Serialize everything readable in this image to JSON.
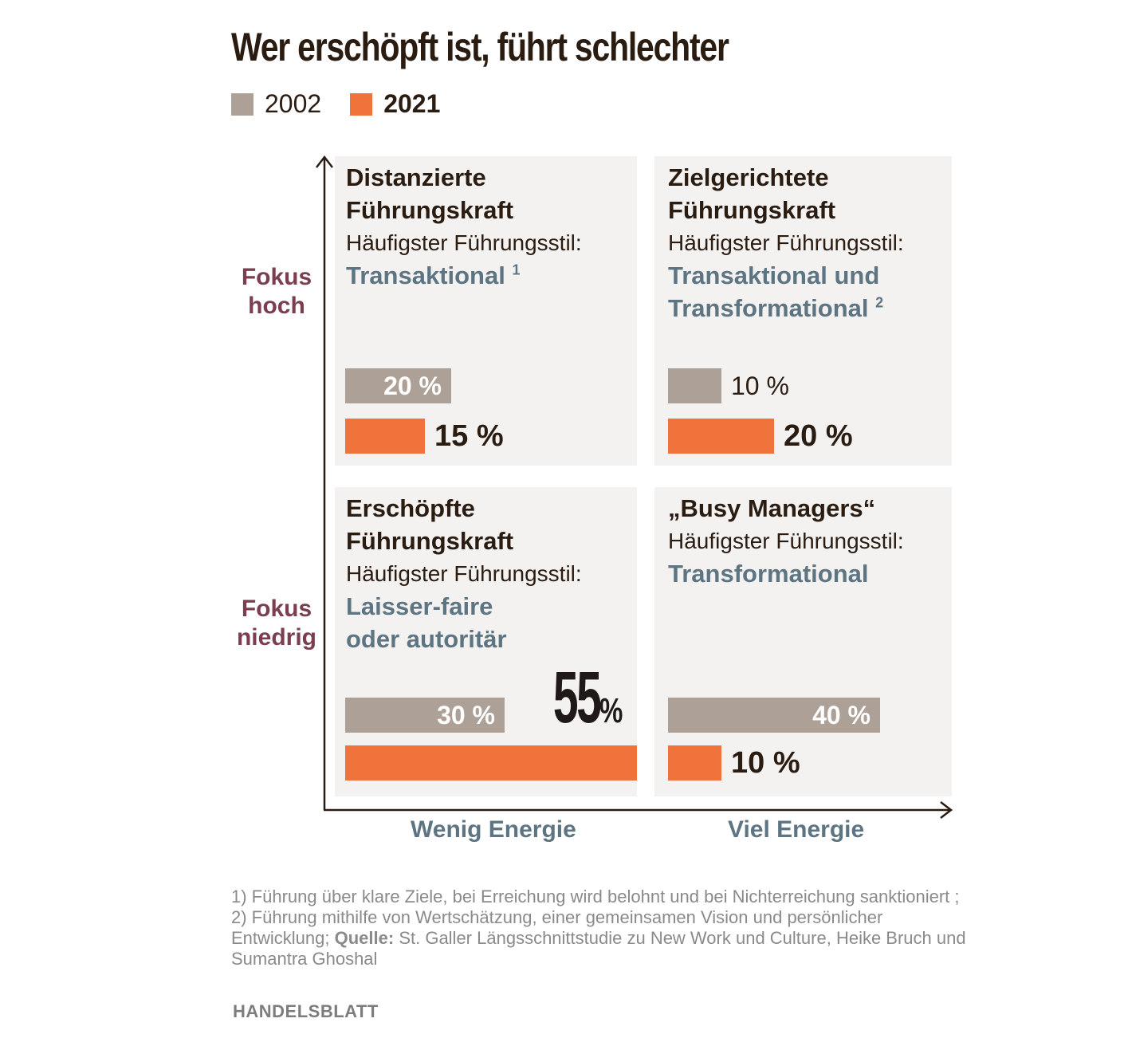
{
  "title": "Wer erschöpft ist, führt schlechter",
  "legend": {
    "label_2002": "2002",
    "label_2021": "2021",
    "color_2002": "#ada197",
    "color_2021": "#f0733c"
  },
  "y_axis": {
    "high": "Fokus hoch",
    "low": "Fokus niedrig"
  },
  "x_axis": {
    "low": "Wenig Energie",
    "high": "Viel Energie"
  },
  "chart_data": {
    "type": "bar",
    "series": [
      {
        "name": "2002",
        "values": [
          20,
          10,
          30,
          40
        ]
      },
      {
        "name": "2021",
        "values": [
          15,
          20,
          55,
          10
        ]
      }
    ],
    "categories": [
      "Distanzierte Führungskraft",
      "Zielgerichtete Führungskraft",
      "Erschöpfte Führungskraft",
      "„Busy Managers“"
    ],
    "value_unit": "%",
    "quadrants": [
      {
        "id": "distanziert",
        "title_line1": "Distanzierte",
        "title_line2": "Führungskraft",
        "subtitle": "Häufigster Führungsstil:",
        "style_line1": "Transaktional",
        "style_line2": "",
        "footnote": "1",
        "v2002": 20,
        "label2002": "20 %",
        "v2021": 15,
        "label2021": "15 %"
      },
      {
        "id": "zielgerichtet",
        "title_line1": "Zielgerichtete",
        "title_line2": "Führungskraft",
        "subtitle": "Häufigster Führungsstil:",
        "style_line1": "Transaktional und",
        "style_line2": "Transformational",
        "footnote": "2",
        "v2002": 10,
        "label2002": "10 %",
        "v2021": 20,
        "label2021": "20 %"
      },
      {
        "id": "erschoepft",
        "title_line1": "Erschöpfte",
        "title_line2": "Führungskraft",
        "subtitle": "Häufigster Führungsstil:",
        "style_line1": "Laisser-faire",
        "style_line2": "oder autoritär",
        "footnote": "",
        "v2002": 30,
        "label2002": "30 %",
        "v2021": 55,
        "label2021_num": "55",
        "label2021_pct": "%"
      },
      {
        "id": "busy",
        "title_line1": "„Busy Managers“",
        "subtitle": "Häufigster Führungsstil:",
        "style_line1": "Transformational",
        "footnote": "",
        "v2002": 40,
        "label2002": "40 %",
        "v2021": 10,
        "label2021": "10 %"
      }
    ]
  },
  "footnote_text": {
    "part1": "1) Führung über klare Ziele, bei Erreichung wird belohnt und bei Nichterreichung sanktioniert ; 2) Führung mithilfe von Wertschätzung, einer gemeinsamen Vision und persönlicher Entwicklung; ",
    "source_label": "Quelle:",
    "part2": " St. Galler Längsschnittstudie zu New Work und Culture, Heike Bruch und Sumantra Ghoshal"
  },
  "brand": "HANDELSBLATT"
}
